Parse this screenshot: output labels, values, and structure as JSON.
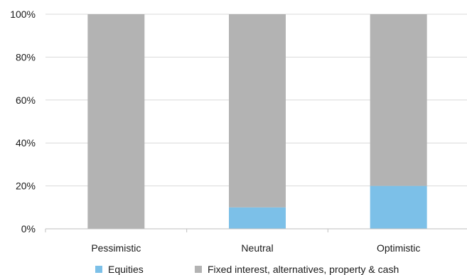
{
  "chart_data": {
    "type": "bar",
    "stacked": true,
    "categories": [
      "Pessimistic",
      "Neutral",
      "Optimistic"
    ],
    "series": [
      {
        "name": "Equities",
        "values": [
          0,
          10,
          20
        ],
        "color": "#7cc0e8"
      },
      {
        "name": "Fixed interest, alternatives, property & cash",
        "values": [
          100,
          90,
          80
        ],
        "color": "#b3b3b3"
      }
    ],
    "ylim": [
      0,
      100
    ],
    "yticks": [
      "0%",
      "20%",
      "40%",
      "60%",
      "80%",
      "100%"
    ],
    "ytick_values": [
      0,
      20,
      40,
      60,
      80,
      100
    ],
    "grid": true,
    "legend_position": "bottom",
    "title": "",
    "xlabel": "",
    "ylabel": ""
  }
}
